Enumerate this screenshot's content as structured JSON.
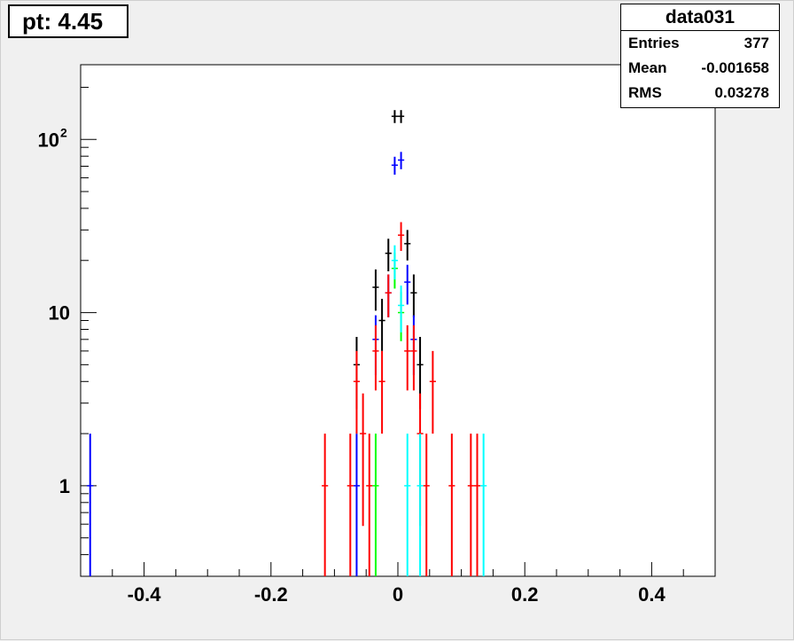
{
  "title_box": {
    "text": "pt: 4.45"
  },
  "stats": {
    "name": "data031",
    "rows": [
      {
        "label": "Entries",
        "value": "377"
      },
      {
        "label": "Mean",
        "value": "-0.001658"
      },
      {
        "label": "RMS",
        "value": "0.03278"
      }
    ]
  },
  "chart_data": {
    "type": "scatter",
    "title": "",
    "xlabel": "",
    "ylabel": "",
    "xlim": [
      -0.5,
      0.5
    ],
    "ylim": [
      0.3,
      270
    ],
    "y_log": true,
    "grid": false,
    "x_ticks": [
      -0.4,
      -0.2,
      0,
      0.2,
      0.4
    ],
    "x_tick_labels": [
      "-0.4",
      "-0.2",
      "0",
      "0.2",
      "0.4"
    ],
    "y_tick_labels": [
      {
        "value": 1,
        "base": "1",
        "exp": ""
      },
      {
        "value": 10,
        "base": "10",
        "exp": ""
      },
      {
        "value": 100,
        "base": "10",
        "exp": "2"
      }
    ],
    "bin_width": 0.01,
    "series": [
      {
        "color": "#000000",
        "x": [
          -0.065,
          -0.035,
          -0.025,
          -0.015,
          -0.005,
          0.005,
          0.015,
          0.025,
          0.035
        ],
        "y": [
          5,
          14,
          9,
          22,
          136,
          136,
          25,
          13,
          5
        ]
      },
      {
        "color": "#0000ff",
        "x": [
          -0.485,
          -0.065,
          -0.035,
          -0.015,
          -0.005,
          0.005,
          0.015,
          0.025
        ],
        "y": [
          1,
          1,
          7,
          13,
          71,
          76,
          15,
          7
        ]
      },
      {
        "color": "#ff0000",
        "x": [
          -0.115,
          -0.075,
          -0.065,
          -0.055,
          -0.045,
          -0.035,
          -0.025,
          -0.015,
          0.005,
          0.015,
          0.025,
          0.035,
          0.045,
          0.055,
          0.085,
          0.115,
          0.125
        ],
        "y": [
          1,
          1,
          4,
          2,
          1,
          6,
          4,
          13,
          28,
          6,
          6,
          2,
          1,
          4,
          1,
          1,
          1
        ]
      },
      {
        "color": "#00ff00",
        "x": [
          -0.035,
          -0.005,
          0.005
        ],
        "y": [
          1,
          18,
          10
        ]
      },
      {
        "color": "#00ffff",
        "x": [
          -0.005,
          0.005,
          0.015,
          0.035,
          0.135
        ],
        "y": [
          20,
          11,
          1,
          1,
          1
        ]
      }
    ]
  }
}
